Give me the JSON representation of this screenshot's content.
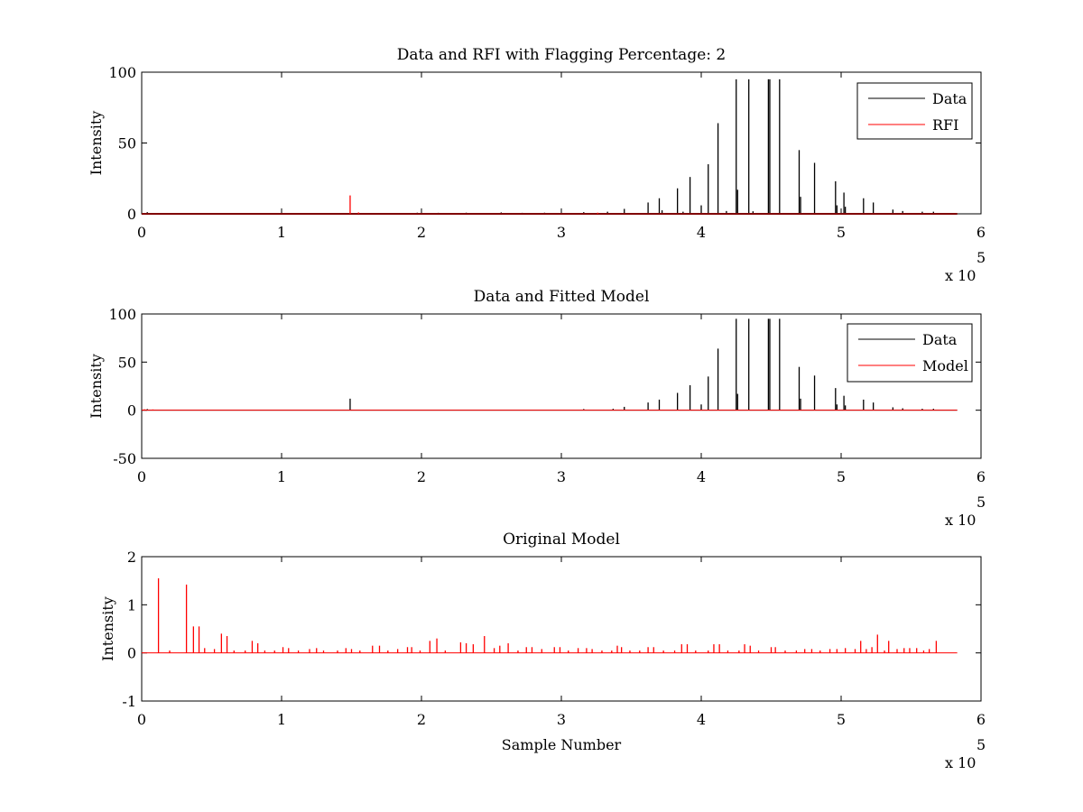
{
  "chart_data": [
    {
      "type": "line",
      "title": "Data and RFI with Flagging Percentage: 2",
      "xlabel": "",
      "ylabel": "Intensity",
      "xlim": [
        0,
        600000
      ],
      "ylim": [
        0,
        100
      ],
      "xticks": [
        0,
        1,
        2,
        3,
        4,
        5,
        6
      ],
      "yticks": [
        0,
        50,
        100
      ],
      "x_multiplier": "x 10",
      "x_multiplier_exp": "5",
      "legend": {
        "position": "top-right",
        "entries": [
          "Data",
          "RFI"
        ]
      },
      "series": [
        {
          "name": "Data",
          "color": "#000000",
          "spikes": [
            [
              4000,
              1.2
            ],
            [
              183000,
              0.6
            ],
            [
              197000,
              0.8
            ],
            [
              212000,
              0.7
            ],
            [
              232000,
              0.8
            ],
            [
              257000,
              1.0
            ],
            [
              272000,
              0.7
            ],
            [
              288000,
              0.8
            ],
            [
              316000,
              1.2
            ],
            [
              333000,
              1.5
            ],
            [
              345000,
              3.5
            ],
            [
              372000,
              2.5
            ],
            [
              387000,
              1.5
            ],
            [
              418000,
              2.0
            ],
            [
              437000,
              1.8
            ],
            [
              362000,
              8
            ],
            [
              370000,
              11
            ],
            [
              383000,
              18
            ],
            [
              392000,
              26
            ],
            [
              400000,
              6
            ],
            [
              405000,
              35
            ],
            [
              412000,
              64
            ],
            [
              425000,
              95
            ],
            [
              426000,
              17
            ],
            [
              434000,
              95
            ],
            [
              448000,
              95
            ],
            [
              449000,
              95
            ],
            [
              456000,
              95
            ],
            [
              470000,
              45
            ],
            [
              471000,
              12
            ],
            [
              481000,
              36
            ],
            [
              496000,
              23
            ],
            [
              497000,
              6
            ],
            [
              502000,
              15
            ],
            [
              503000,
              5
            ],
            [
              516000,
              11
            ],
            [
              523000,
              8
            ],
            [
              537000,
              3
            ],
            [
              544000,
              2
            ],
            [
              558000,
              1.5
            ],
            [
              566000,
              1.5
            ]
          ]
        },
        {
          "name": "RFI",
          "color": "#ff0000",
          "spikes": [
            [
              149000,
              13
            ],
            [
              155000,
              1.0
            ],
            [
              326000,
              0.8
            ]
          ]
        }
      ]
    },
    {
      "type": "line",
      "title": "Data and Fitted Model",
      "xlabel": "",
      "ylabel": "Intensity",
      "xlim": [
        0,
        600000
      ],
      "ylim": [
        -50,
        100
      ],
      "xticks": [
        0,
        1,
        2,
        3,
        4,
        5,
        6
      ],
      "yticks": [
        -50,
        0,
        50,
        100
      ],
      "x_multiplier": "x 10",
      "x_multiplier_exp": "5",
      "legend": {
        "position": "top-right",
        "entries": [
          "Data",
          "Model"
        ]
      },
      "series": [
        {
          "name": "Data",
          "color": "#000000",
          "spikes": [
            [
              4000,
              1.2
            ],
            [
              149000,
              12
            ],
            [
              316000,
              1.2
            ],
            [
              345000,
              3.5
            ],
            [
              337000,
              1.5
            ],
            [
              362000,
              8
            ],
            [
              370000,
              11
            ],
            [
              383000,
              18
            ],
            [
              392000,
              26
            ],
            [
              400000,
              6
            ],
            [
              405000,
              35
            ],
            [
              412000,
              64
            ],
            [
              425000,
              95
            ],
            [
              426000,
              17
            ],
            [
              434000,
              95
            ],
            [
              448000,
              95
            ],
            [
              449000,
              95
            ],
            [
              456000,
              95
            ],
            [
              470000,
              45
            ],
            [
              471000,
              12
            ],
            [
              481000,
              36
            ],
            [
              496000,
              23
            ],
            [
              497000,
              6
            ],
            [
              502000,
              15
            ],
            [
              503000,
              5
            ],
            [
              516000,
              11
            ],
            [
              523000,
              8
            ],
            [
              537000,
              3
            ],
            [
              544000,
              2
            ],
            [
              558000,
              1.5
            ],
            [
              566000,
              1.5
            ]
          ]
        },
        {
          "name": "Model",
          "color": "#ff0000",
          "spikes": [
            [
              2000,
              1.0
            ],
            [
              8000,
              0.8
            ],
            [
              400000,
              0.5
            ]
          ]
        }
      ]
    },
    {
      "type": "line",
      "title": "Original Model",
      "xlabel": "Sample Number",
      "ylabel": "Intensity",
      "xlim": [
        0,
        600000
      ],
      "ylim": [
        -1,
        2
      ],
      "xticks": [
        0,
        1,
        2,
        3,
        4,
        5,
        6
      ],
      "yticks": [
        -1,
        0,
        1,
        2
      ],
      "x_multiplier": "x 10",
      "x_multiplier_exp": "5",
      "series": [
        {
          "color": "#ff0000",
          "spikes": [
            [
              12000,
              1.55
            ],
            [
              20000,
              0.05
            ],
            [
              32000,
              1.42
            ],
            [
              37000,
              0.55
            ],
            [
              41000,
              0.55
            ],
            [
              45000,
              0.1
            ],
            [
              52000,
              0.08
            ],
            [
              57000,
              0.4
            ],
            [
              61000,
              0.35
            ],
            [
              66000,
              0.05
            ],
            [
              74000,
              0.05
            ],
            [
              79000,
              0.25
            ],
            [
              83000,
              0.2
            ],
            [
              88000,
              0.05
            ],
            [
              95000,
              0.05
            ],
            [
              101000,
              0.12
            ],
            [
              105000,
              0.1
            ],
            [
              112000,
              0.05
            ],
            [
              120000,
              0.08
            ],
            [
              125000,
              0.1
            ],
            [
              130000,
              0.05
            ],
            [
              140000,
              0.05
            ],
            [
              146000,
              0.1
            ],
            [
              150000,
              0.08
            ],
            [
              156000,
              0.05
            ],
            [
              165000,
              0.15
            ],
            [
              170000,
              0.15
            ],
            [
              176000,
              0.05
            ],
            [
              183000,
              0.08
            ],
            [
              190000,
              0.12
            ],
            [
              193000,
              0.12
            ],
            [
              199000,
              0.05
            ],
            [
              206000,
              0.25
            ],
            [
              211000,
              0.3
            ],
            [
              217000,
              0.05
            ],
            [
              228000,
              0.22
            ],
            [
              232000,
              0.2
            ],
            [
              237000,
              0.18
            ],
            [
              245000,
              0.35
            ],
            [
              252000,
              0.1
            ],
            [
              256000,
              0.15
            ],
            [
              262000,
              0.2
            ],
            [
              269000,
              0.05
            ],
            [
              275000,
              0.12
            ],
            [
              279000,
              0.12
            ],
            [
              286000,
              0.08
            ],
            [
              295000,
              0.12
            ],
            [
              299000,
              0.12
            ],
            [
              305000,
              0.05
            ],
            [
              312000,
              0.1
            ],
            [
              318000,
              0.1
            ],
            [
              322000,
              0.08
            ],
            [
              329000,
              0.05
            ],
            [
              336000,
              0.05
            ],
            [
              340000,
              0.15
            ],
            [
              343000,
              0.12
            ],
            [
              349000,
              0.05
            ],
            [
              356000,
              0.05
            ],
            [
              362000,
              0.12
            ],
            [
              366000,
              0.12
            ],
            [
              373000,
              0.05
            ],
            [
              381000,
              0.05
            ],
            [
              386000,
              0.18
            ],
            [
              390000,
              0.18
            ],
            [
              396000,
              0.05
            ],
            [
              405000,
              0.05
            ],
            [
              409000,
              0.18
            ],
            [
              413000,
              0.18
            ],
            [
              419000,
              0.05
            ],
            [
              427000,
              0.05
            ],
            [
              431000,
              0.18
            ],
            [
              435000,
              0.15
            ],
            [
              441000,
              0.05
            ],
            [
              450000,
              0.12
            ],
            [
              453000,
              0.12
            ],
            [
              460000,
              0.05
            ],
            [
              468000,
              0.05
            ],
            [
              474000,
              0.08
            ],
            [
              479000,
              0.08
            ],
            [
              485000,
              0.05
            ],
            [
              492000,
              0.08
            ],
            [
              497000,
              0.08
            ],
            [
              503000,
              0.1
            ],
            [
              510000,
              0.08
            ],
            [
              514000,
              0.25
            ],
            [
              518000,
              0.08
            ],
            [
              522000,
              0.12
            ],
            [
              526000,
              0.38
            ],
            [
              531000,
              0.05
            ],
            [
              534000,
              0.25
            ],
            [
              540000,
              0.08
            ],
            [
              545000,
              0.1
            ],
            [
              549000,
              0.1
            ],
            [
              554000,
              0.1
            ],
            [
              559000,
              0.05
            ],
            [
              563000,
              0.08
            ],
            [
              568000,
              0.25
            ]
          ]
        }
      ]
    }
  ]
}
